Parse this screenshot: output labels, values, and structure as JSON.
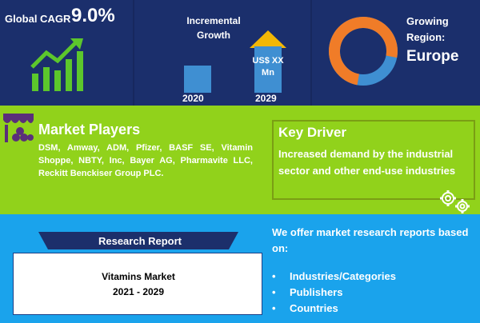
{
  "cagr": {
    "label": "Global CAGR",
    "value": "9.0%"
  },
  "growth": {
    "label": "Incremental Growth",
    "value_label": "US$ XX Mn",
    "years": [
      "2020",
      "2029"
    ]
  },
  "region": {
    "label": "Growing Region:",
    "value": "Europe"
  },
  "players": {
    "title": "Market Players",
    "text": "DSM, Amway, ADM, Pfizer, BASF SE, Vitamin Shoppe, NBTY, Inc, Bayer AG, Pharmavite LLC, Reckitt Benckiser Group PLC."
  },
  "driver": {
    "title": "Key Driver",
    "text": "Increased demand by the industrial sector and other end-use industries"
  },
  "report": {
    "banner": "Research Report",
    "title": "Vitamins Market",
    "years": "2021 - 2029"
  },
  "offer": {
    "title": "We offer market research reports based on:",
    "bullet": "•",
    "items": [
      "Industries/Categories",
      "Publishers",
      "Countries"
    ]
  },
  "colors": {
    "navy": "#1b2f6c",
    "green": "#91d21b",
    "blue": "#1aa3ec",
    "orange": "#f07c28",
    "bar_blue": "#3f8fd2",
    "arrow_yellow": "#f2b705"
  }
}
